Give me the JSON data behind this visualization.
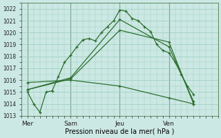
{
  "xlabel": "Pression niveau de la mer( hPa )",
  "bg_color": "#cce8e4",
  "grid_color": "#99ccbb",
  "line_color": "#2d6e2d",
  "ylim": [
    1013,
    1022.5
  ],
  "yticks": [
    1013,
    1014,
    1015,
    1016,
    1017,
    1018,
    1019,
    1020,
    1021,
    1022
  ],
  "xlim": [
    0,
    16
  ],
  "xtick_pos": [
    0.5,
    4,
    8,
    12
  ],
  "xtick_labels": [
    "Mer",
    "Sam",
    "Jeu",
    "Ven"
  ],
  "vline_pos": [
    0.5,
    4,
    8,
    12
  ],
  "series": [
    {
      "x": [
        0.5,
        1.0,
        1.5,
        2.0,
        2.5,
        3.0,
        3.5,
        4.0,
        4.5,
        5.0,
        5.5,
        6.0,
        6.5,
        7.0,
        7.5,
        8.0,
        8.5,
        9.0,
        9.5,
        10.0,
        10.5,
        11.0,
        11.5,
        12.0,
        12.5,
        13.0,
        13.5,
        14.0
      ],
      "y": [
        1015.0,
        1014.0,
        1013.3,
        1015.0,
        1015.1,
        1016.3,
        1017.5,
        1018.1,
        1018.8,
        1019.4,
        1019.5,
        1019.3,
        1020.0,
        1020.5,
        1021.0,
        1021.9,
        1021.8,
        1021.2,
        1021.0,
        1020.5,
        1020.1,
        1019.0,
        1018.5,
        1018.3,
        1017.5,
        1016.5,
        1015.5,
        1014.8
      ]
    },
    {
      "x": [
        0.5,
        4.0,
        8.0,
        12.0,
        14.0
      ],
      "y": [
        1015.2,
        1016.2,
        1021.1,
        1018.8,
        1014.2
      ]
    },
    {
      "x": [
        0.5,
        4.0,
        8.0,
        12.0,
        14.0
      ],
      "y": [
        1015.2,
        1016.1,
        1020.2,
        1019.2,
        1014.0
      ]
    },
    {
      "x": [
        0.5,
        4.0,
        8.0,
        12.0,
        14.0
      ],
      "y": [
        1015.8,
        1016.0,
        1015.5,
        1014.5,
        1014.0
      ]
    }
  ]
}
